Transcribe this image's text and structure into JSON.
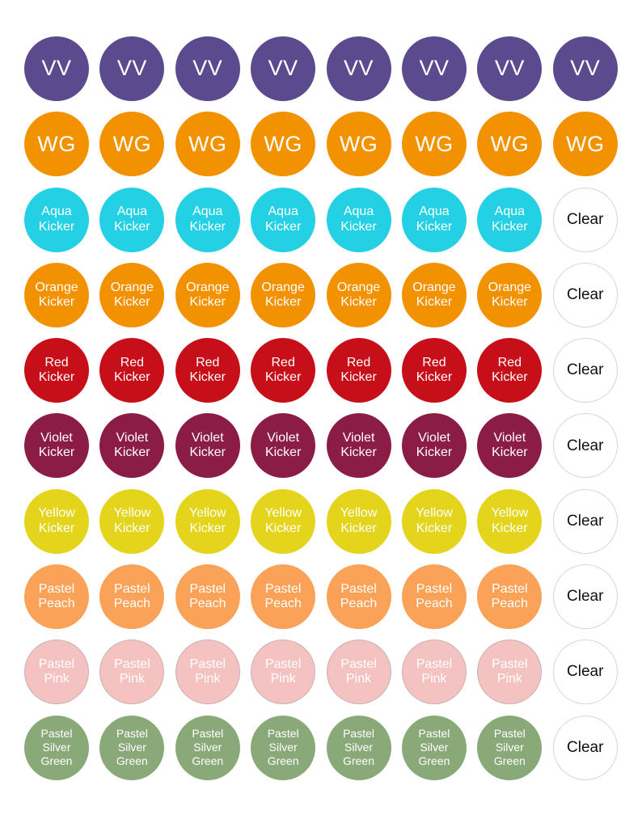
{
  "rows": [
    {
      "label": "VV",
      "color": "#5c4a8e",
      "count": 8,
      "style": "abbr"
    },
    {
      "label": "WG",
      "color": "#f39200",
      "count": 8,
      "style": "abbr"
    },
    {
      "label": "Aqua\nKicker",
      "color": "#24d0e3",
      "count": 7,
      "style": "two",
      "extra": "Clear"
    },
    {
      "label": "Orange\nKicker",
      "color": "#f39200",
      "count": 7,
      "style": "two",
      "extra": "Clear"
    },
    {
      "label": "Red\nKicker",
      "color": "#c70f1a",
      "count": 7,
      "style": "two",
      "extra": "Clear"
    },
    {
      "label": "Violet\nKicker",
      "color": "#8b1c46",
      "count": 7,
      "style": "two",
      "extra": "Clear"
    },
    {
      "label": "Yellow\nKicker",
      "color": "#e4d51c",
      "count": 7,
      "style": "two",
      "extra": "Clear"
    },
    {
      "label": "Pastel\nPeach",
      "color": "#fba259",
      "count": 7,
      "style": "two",
      "extra": "Clear"
    },
    {
      "label": "Pastel\nPink",
      "color": "#f4c3c1",
      "count": 7,
      "style": "two light",
      "extra": "Clear"
    },
    {
      "label": "Pastel\nSilver\nGreen",
      "color": "#8aa979",
      "count": 7,
      "style": "three",
      "extra": "Clear"
    }
  ]
}
